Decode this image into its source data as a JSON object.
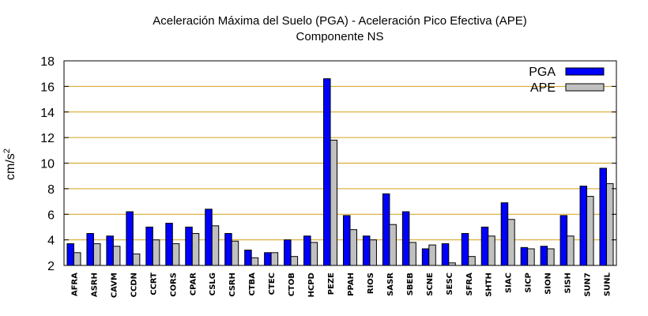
{
  "chart_data": {
    "type": "bar",
    "title": "Aceleración Máxima del Suelo (PGA) -  Aceleración Pico Efectiva (APE)",
    "subtitle": "Componente NS",
    "xlabel": "",
    "ylabel": "cm/s",
    "ylabel_superscript": "2",
    "ylim": [
      2,
      18
    ],
    "yticks": [
      2,
      4,
      6,
      8,
      10,
      12,
      14,
      16,
      18
    ],
    "grid": "horizontal",
    "legend_position": "top-right",
    "categories": [
      "AFRA",
      "ASRH",
      "CAVM",
      "CCDN",
      "CCRT",
      "CORS",
      "CPAR",
      "CSLG",
      "CSRH",
      "CTBA",
      "CTEC",
      "CTOB",
      "HCPD",
      "PEZE",
      "PPAH",
      "RIOS",
      "SASR",
      "SBEB",
      "SCNE",
      "SESC",
      "SFRA",
      "SHTH",
      "SIAC",
      "SICP",
      "SION",
      "SISH",
      "SUN7",
      "SUNL"
    ],
    "series": [
      {
        "name": "PGA",
        "color": "#0000ff",
        "values": [
          3.7,
          4.5,
          4.3,
          6.2,
          5.0,
          5.3,
          5.0,
          6.4,
          4.5,
          3.2,
          3.0,
          4.0,
          4.3,
          16.6,
          5.9,
          4.3,
          7.6,
          6.2,
          3.3,
          3.7,
          4.5,
          5.0,
          6.9,
          3.4,
          3.5,
          5.9,
          8.2,
          9.6
        ]
      },
      {
        "name": "APE",
        "color": "#c0c0c0",
        "values": [
          3.0,
          3.7,
          3.5,
          2.9,
          4.0,
          3.7,
          4.5,
          5.1,
          3.9,
          2.6,
          3.0,
          2.7,
          3.8,
          11.8,
          4.8,
          4.0,
          5.2,
          3.8,
          3.6,
          2.2,
          2.7,
          4.3,
          5.6,
          3.3,
          3.3,
          4.3,
          7.4,
          8.4
        ]
      }
    ],
    "colors": {
      "grid": "#d4a017",
      "axis": "#000000",
      "bar_stroke": "#000000"
    }
  }
}
